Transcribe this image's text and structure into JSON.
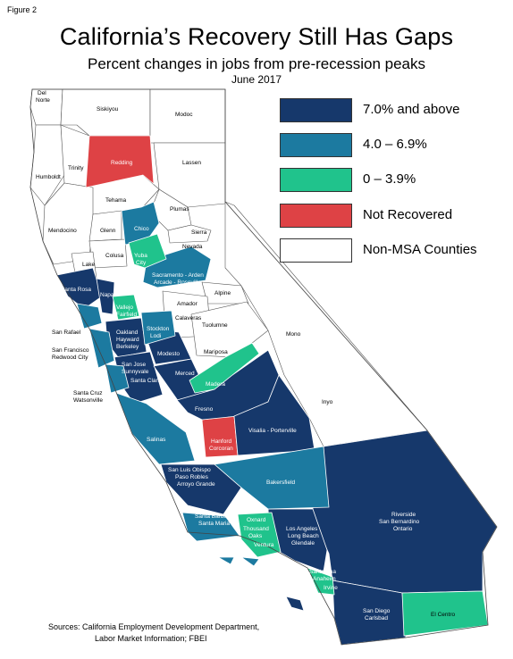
{
  "figure_label": "Figure 2",
  "title": "California’s Recovery Still Has Gaps",
  "subtitle": "Percent changes in jobs from pre-recession peaks",
  "date": "June 2017",
  "legend": [
    {
      "label": "7.0% and above",
      "color": "#16386b"
    },
    {
      "label": "4.0 – 6.9%",
      "color": "#1c7aa0"
    },
    {
      "label": "0 – 3.9%",
      "color": "#20c38c"
    },
    {
      "label": "Not Recovered",
      "color": "#de4245"
    },
    {
      "label": "Non-MSA Counties",
      "color": "#ffffff"
    }
  ],
  "map_labels": {
    "del_norte_1": "Del",
    "del_norte_2": "Norte",
    "siskiyou": "Siskiyou",
    "modoc": "Modoc",
    "humboldt": "Humboldt",
    "trinity": "Trinity",
    "redding": "Redding",
    "lassen": "Lassen",
    "tehama": "Tehama",
    "plumas": "Plumas",
    "chico": "Chico",
    "mendocino": "Mendocino",
    "glenn": "Glenn",
    "sierra": "Sierra",
    "nevada": "Nevada",
    "yuba_1": "Yuba",
    "yuba_2": "City",
    "colusa": "Colusa",
    "lake": "Lake",
    "sacramento_1": "Sacramento - Arden",
    "sacramento_2": "Arcade - Roseville",
    "santa_rosa": "Santa Rosa",
    "napa": "Napa",
    "alpine": "Alpine",
    "vallejo_1": "Vallejo",
    "vallejo_2": "Fairfield",
    "amador": "Amador",
    "san_rafael": "San Rafael",
    "calaveras": "Calaveras",
    "tuolumne": "Tuolumne",
    "oakland_1": "Oakland",
    "oakland_2": "Hayward",
    "oakland_3": "Berkeley",
    "stockton_1": "Stockton",
    "stockton_2": "Lodi",
    "mono": "Mono",
    "sf_1": "San Francisco",
    "sf_2": "Redwood City",
    "modesto": "Modesto",
    "mariposa": "Mariposa",
    "san_jose_1": "San Jose",
    "san_jose_2": "Sunnyvale",
    "santa_clara": "Santa Clara",
    "merced": "Merced",
    "santa_cruz_1": "Santa Cruz",
    "santa_cruz_2": "Watsonville",
    "madera": "Madera",
    "inyo": "Inyo",
    "fresno": "Fresno",
    "visalia": "Visalia - Porterville",
    "salinas": "Salinas",
    "hanford_1": "Hanford",
    "hanford_2": "Corcoran",
    "slo_1": "San Luis Obispo",
    "slo_2": "Paso Robles",
    "slo_3": "Arroyo Grande",
    "bakersfield": "Bakersfield",
    "riverside_1": "Riverside",
    "riverside_2": "San Bernardino",
    "riverside_3": "Ontario",
    "santa_barbara_1": "Santa Barbara",
    "santa_barbara_2": "Santa Maria",
    "oxnard_1": "Oxnard",
    "oxnard_2": "Thousand",
    "oxnard_3": "Oaks",
    "oxnard_4": "Ventura",
    "la_1": "Los Angeles",
    "la_2": "Long Beach",
    "la_3": "Glendale",
    "santa_ana_1": "Santa Ana",
    "santa_ana_2": "Anaheim",
    "santa_ana_3": "Irvine",
    "san_diego_1": "San Diego",
    "san_diego_2": "Carlsbad",
    "el_centro": "El Centro"
  },
  "sources": {
    "line1": "Sources: California Employment Development Department,",
    "line2": "Labor Market Information; FBEI"
  }
}
